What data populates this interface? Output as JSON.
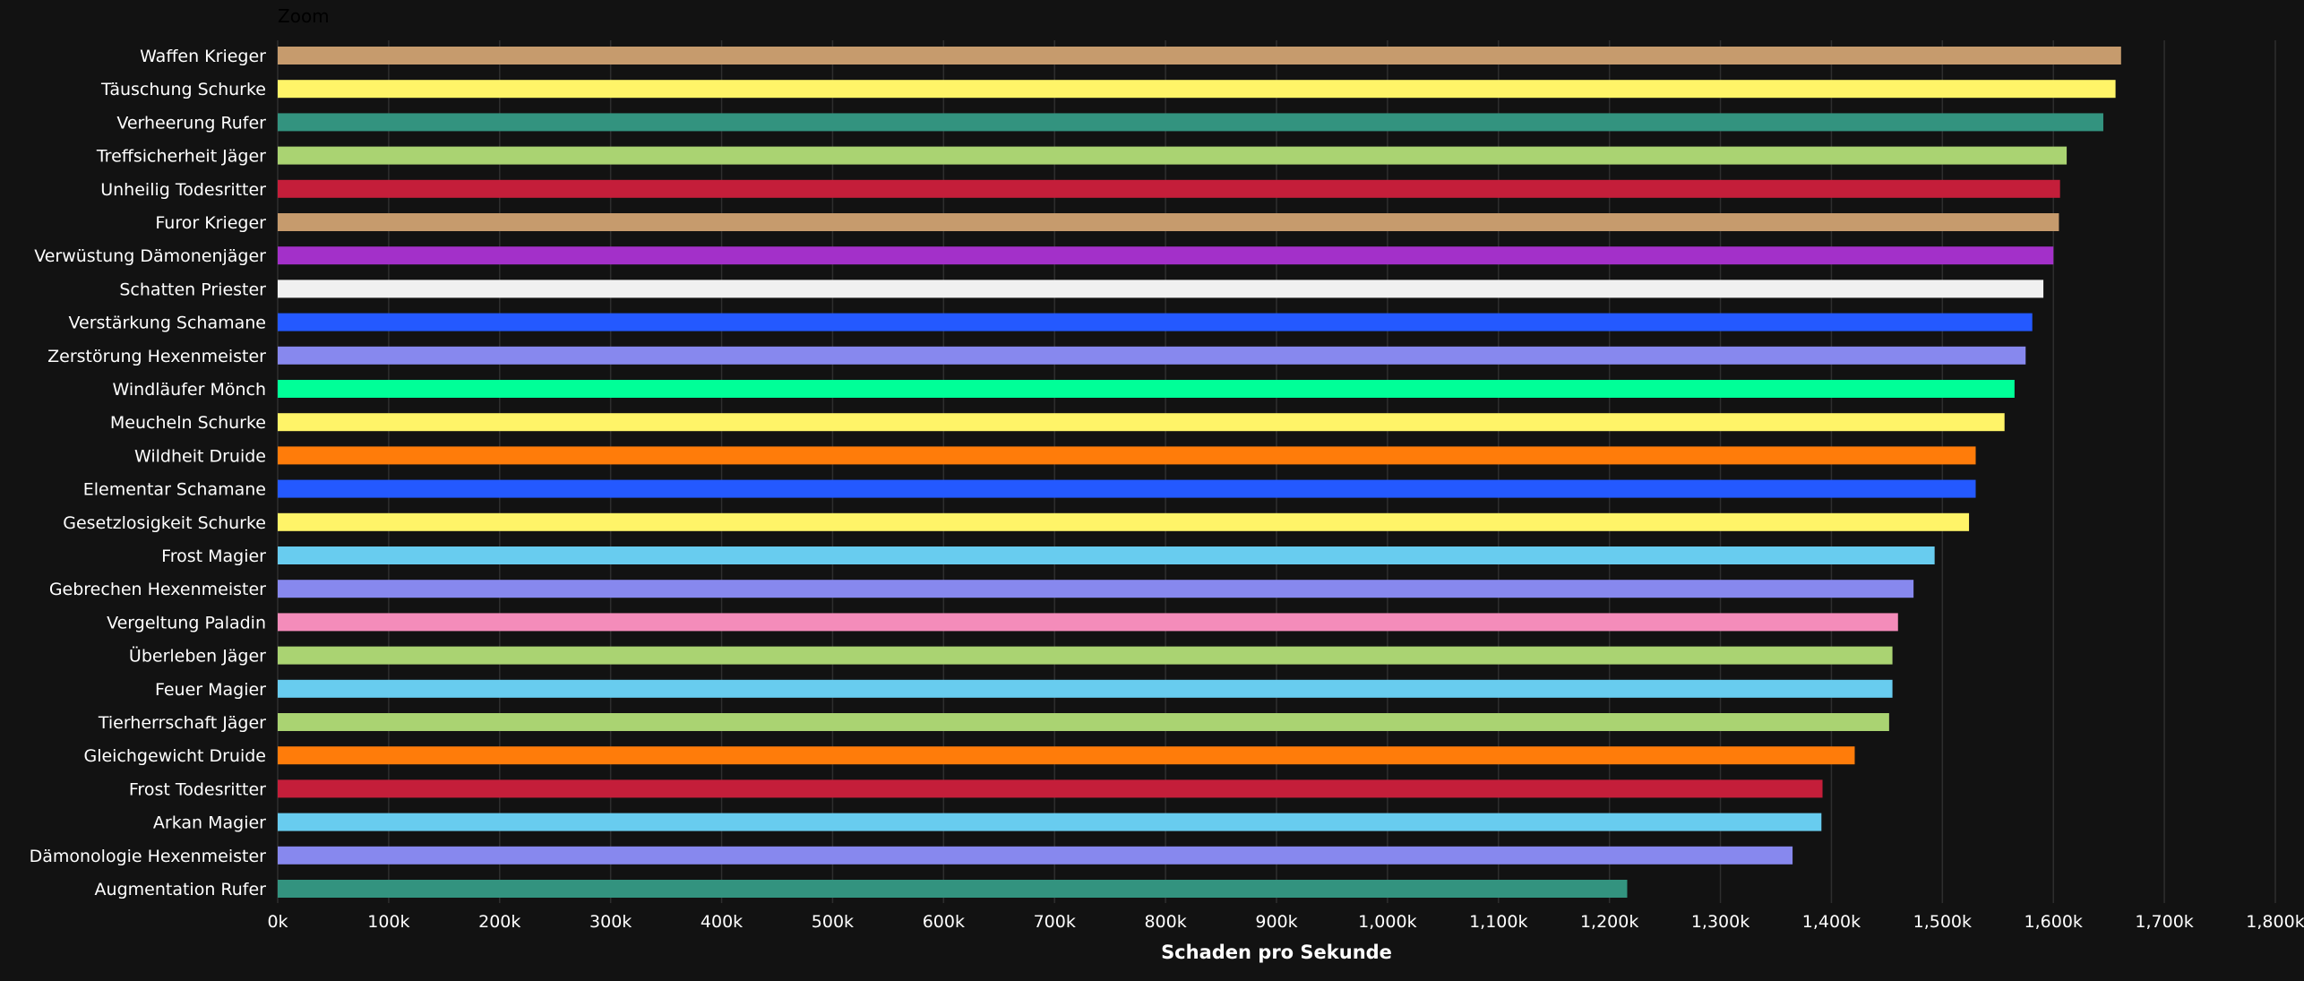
{
  "zoom_label": "Zoom",
  "chart_data": {
    "type": "bar",
    "orientation": "horizontal",
    "xlabel": "Schaden pro Sekunde",
    "xlim": [
      0,
      1800000
    ],
    "x_ticks": [
      0,
      100000,
      200000,
      300000,
      400000,
      500000,
      600000,
      700000,
      800000,
      900000,
      1000000,
      1100000,
      1200000,
      1300000,
      1400000,
      1500000,
      1600000,
      1700000,
      1800000
    ],
    "x_tick_labels": [
      "0k",
      "100k",
      "200k",
      "300k",
      "400k",
      "500k",
      "600k",
      "700k",
      "800k",
      "900k",
      "1,000k",
      "1,100k",
      "1,200k",
      "1,300k",
      "1,400k",
      "1,500k",
      "1,600k",
      "1,700k",
      "1,800k"
    ],
    "grid": true,
    "legend": "none",
    "categories": [
      "Waffen Krieger",
      "Täuschung Schurke",
      "Verheerung Rufer",
      "Treffsicherheit Jäger",
      "Unheilig Todesritter",
      "Furor Krieger",
      "Verwüstung Dämonenjäger",
      "Schatten Priester",
      "Verstärkung Schamane",
      "Zerstörung Hexenmeister",
      "Windläufer Mönch",
      "Meucheln Schurke",
      "Wildheit Druide",
      "Elementar Schamane",
      "Gesetzlosigkeit Schurke",
      "Frost Magier",
      "Gebrechen Hexenmeister",
      "Vergeltung Paladin",
      "Überleben Jäger",
      "Feuer Magier",
      "Tierherrschaft Jäger",
      "Gleichgewicht Druide",
      "Frost Todesritter",
      "Arkan Magier",
      "Dämonologie Hexenmeister",
      "Augmentation Rufer"
    ],
    "values": [
      1661000,
      1656000,
      1645000,
      1612000,
      1606000,
      1605000,
      1600000,
      1591000,
      1581000,
      1575000,
      1565000,
      1556000,
      1530000,
      1530000,
      1524000,
      1493000,
      1474000,
      1460000,
      1455000,
      1455000,
      1452000,
      1421000,
      1392000,
      1391000,
      1365000,
      1216000
    ],
    "colors": [
      "#C69B6D",
      "#FFF468",
      "#33937F",
      "#AAD372",
      "#C41E3A",
      "#C69B6D",
      "#A330C9",
      "#F0F0F0",
      "#2459FF",
      "#8788EE",
      "#00FF98",
      "#FFF468",
      "#FF7C0A",
      "#2459FF",
      "#FFF468",
      "#68CCEF",
      "#8788EE",
      "#F48CBA",
      "#AAD372",
      "#68CCEF",
      "#AAD372",
      "#FF7C0A",
      "#C41E3A",
      "#68CCEF",
      "#8788EE",
      "#33937F"
    ]
  }
}
